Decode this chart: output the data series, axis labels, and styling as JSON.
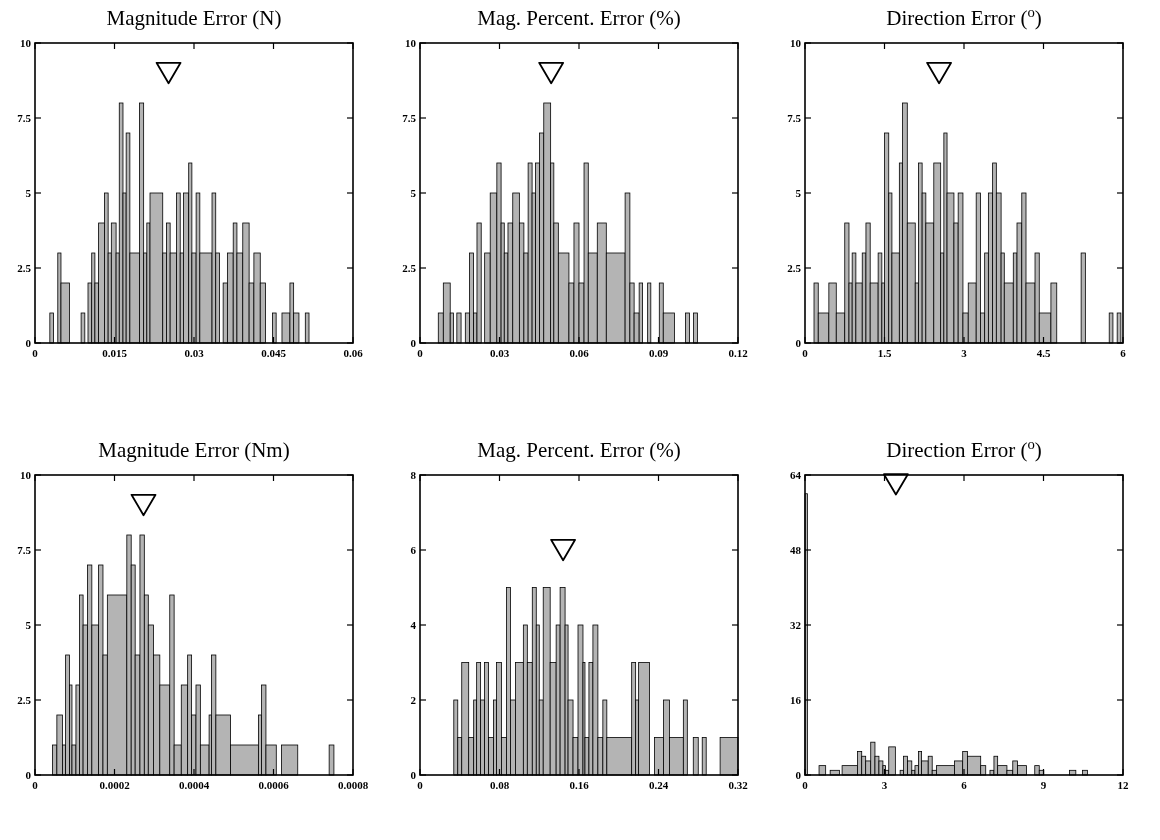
{
  "chart_data": [
    {
      "type": "histogram",
      "title": "Magnitude Error (N)",
      "color": "#b4b4b4",
      "xlim": [
        0,
        0.06
      ],
      "xticks": [
        0,
        0.015,
        0.03,
        0.045,
        0.06
      ],
      "ylim": [
        0,
        10
      ],
      "yticks": [
        0,
        2.5,
        5,
        7.5,
        10
      ],
      "bins": [
        0.0028,
        0.0035,
        0.0043,
        0.0049,
        0.0065,
        0.0087,
        0.0094,
        0.01,
        0.0107,
        0.0113,
        0.012,
        0.0131,
        0.0138,
        0.0144,
        0.0153,
        0.0159,
        0.0166,
        0.0172,
        0.0179,
        0.0197,
        0.0205,
        0.0211,
        0.0217,
        0.0241,
        0.0248,
        0.0255,
        0.0267,
        0.0274,
        0.028,
        0.029,
        0.0296,
        0.0304,
        0.0311,
        0.0334,
        0.0341,
        0.0348,
        0.0355,
        0.0363,
        0.0374,
        0.0381,
        0.0392,
        0.0404,
        0.0413,
        0.0425,
        0.0435,
        0.0448,
        0.0455,
        0.0466,
        0.0481,
        0.0488,
        0.0498,
        0.051,
        0.0517
      ],
      "values": [
        1,
        0,
        3,
        2,
        0,
        1,
        0,
        2,
        3,
        2,
        4,
        5,
        3,
        4,
        3,
        8,
        5,
        7,
        3,
        8,
        3,
        4,
        5,
        3,
        4,
        3,
        5,
        3,
        5,
        6,
        3,
        5,
        3,
        5,
        3,
        0,
        2,
        3,
        4,
        3,
        4,
        2,
        3,
        2,
        0,
        1,
        0,
        1,
        2,
        1,
        0,
        1
      ],
      "series": [
        {
          "type": "scatter",
          "marker": "triangle",
          "color": "#000000",
          "x": [
            0.0252
          ],
          "values": [
            9
          ]
        }
      ]
    },
    {
      "type": "histogram",
      "title": "Mag. Percent. Error (%)",
      "color": "#b4b4b4",
      "xlim": [
        0,
        0.12
      ],
      "xticks": [
        0,
        0.03,
        0.06,
        0.09,
        0.12
      ],
      "ylim": [
        0,
        10
      ],
      "yticks": [
        0,
        2.5,
        5,
        7.5,
        10
      ],
      "bins": [
        0.0069,
        0.0088,
        0.0114,
        0.0126,
        0.0139,
        0.0155,
        0.0171,
        0.0187,
        0.0202,
        0.0215,
        0.0231,
        0.0244,
        0.0265,
        0.029,
        0.0306,
        0.0318,
        0.0332,
        0.035,
        0.0375,
        0.0392,
        0.0408,
        0.0423,
        0.0436,
        0.0451,
        0.0467,
        0.0493,
        0.0505,
        0.0522,
        0.0562,
        0.0581,
        0.06,
        0.0619,
        0.0635,
        0.0669,
        0.0703,
        0.0774,
        0.0792,
        0.0808,
        0.0827,
        0.084,
        0.0859,
        0.0871,
        0.0903,
        0.0918,
        0.096,
        0.1002,
        0.1017,
        0.1032,
        0.1047
      ],
      "values": [
        1,
        2,
        1,
        0,
        1,
        0,
        1,
        3,
        1,
        4,
        0,
        3,
        5,
        6,
        4,
        3,
        4,
        5,
        4,
        3,
        6,
        5,
        6,
        7,
        8,
        6,
        4,
        3,
        2,
        4,
        2,
        6,
        3,
        4,
        3,
        5,
        2,
        1,
        2,
        0,
        2,
        0,
        2,
        1,
        0,
        1,
        0,
        1
      ],
      "series": [
        {
          "type": "scatter",
          "marker": "triangle",
          "color": "#000000",
          "x": [
            0.0495
          ],
          "values": [
            9
          ]
        }
      ]
    },
    {
      "type": "histogram",
      "title": "Direction Error ($^{o}$)",
      "color": "#b4b4b4",
      "xlim": [
        0,
        6
      ],
      "xticks": [
        0,
        1.5,
        3,
        4.5,
        6
      ],
      "ylim": [
        0,
        10
      ],
      "yticks": [
        0,
        2.5,
        5,
        7.5,
        10
      ],
      "bins": [
        0.17,
        0.25,
        0.45,
        0.59,
        0.75,
        0.83,
        0.89,
        0.96,
        1.08,
        1.15,
        1.23,
        1.38,
        1.45,
        1.5,
        1.58,
        1.64,
        1.78,
        1.84,
        1.93,
        2.08,
        2.14,
        2.21,
        2.28,
        2.43,
        2.56,
        2.62,
        2.68,
        2.81,
        2.89,
        2.98,
        3.08,
        3.23,
        3.31,
        3.39,
        3.46,
        3.54,
        3.61,
        3.7,
        3.76,
        3.93,
        4,
        4.09,
        4.17,
        4.34,
        4.42,
        4.64,
        4.75,
        5.21,
        5.29,
        5.74,
        5.81,
        5.89,
        5.96
      ],
      "values": [
        2,
        1,
        2,
        1,
        4,
        2,
        3,
        2,
        3,
        4,
        2,
        3,
        2,
        7,
        5,
        3,
        6,
        8,
        4,
        2,
        6,
        5,
        4,
        6,
        3,
        7,
        5,
        4,
        5,
        1,
        2,
        5,
        1,
        3,
        5,
        6,
        5,
        3,
        2,
        3,
        4,
        5,
        2,
        3,
        1,
        2,
        0,
        3,
        0,
        1,
        0,
        1
      ],
      "series": [
        {
          "type": "scatter",
          "marker": "triangle",
          "color": "#000000",
          "x": [
            2.53
          ],
          "values": [
            9
          ]
        }
      ]
    },
    {
      "type": "histogram",
      "title": "Magnitude Error (Nm)",
      "color": "#b4b4b4",
      "xlim": [
        0,
        0.0008
      ],
      "xticks": [
        0,
        0.0002,
        0.0004,
        0.0006,
        0.0008
      ],
      "ylim": [
        0,
        10
      ],
      "yticks": [
        0,
        2.5,
        5,
        7.5,
        10
      ],
      "bins": [
        4.4e-05,
        5.5e-05,
        6.9e-05,
        7.7e-05,
        8.7e-05,
        9.3e-05,
        0.000103,
        0.000112,
        0.000121,
        0.000132,
        0.000143,
        0.00016,
        0.000171,
        0.000182,
        0.000231,
        0.000242,
        0.000252,
        0.000264,
        0.000275,
        0.000285,
        0.000298,
        0.000314,
        0.000339,
        0.00035,
        0.000368,
        0.000384,
        0.000394,
        0.000405,
        0.000416,
        0.000438,
        0.000444,
        0.000455,
        0.000492,
        0.000562,
        0.00057,
        0.000581,
        0.000607,
        0.00062,
        0.000661,
        0.00074,
        0.000752
      ],
      "values": [
        1,
        2,
        1,
        4,
        3,
        1,
        3,
        6,
        5,
        7,
        5,
        7,
        4,
        6,
        8,
        7,
        4,
        8,
        6,
        5,
        4,
        3,
        6,
        1,
        3,
        4,
        2,
        3,
        1,
        2,
        4,
        2,
        1,
        2,
        3,
        1,
        0,
        1,
        0,
        1
      ],
      "series": [
        {
          "type": "scatter",
          "marker": "triangle",
          "color": "#000000",
          "x": [
            0.000273
          ],
          "values": [
            9
          ]
        }
      ]
    },
    {
      "type": "histogram",
      "title": "Mag. Percent. Error (%)",
      "color": "#b4b4b4",
      "xlim": [
        0,
        0.32
      ],
      "xticks": [
        0,
        0.08,
        0.16,
        0.24,
        0.32
      ],
      "ylim": [
        0,
        8
      ],
      "yticks": [
        0,
        2,
        4,
        6,
        8
      ],
      "bins": [
        0.034,
        0.038,
        0.042,
        0.049,
        0.054,
        0.057,
        0.061,
        0.065,
        0.069,
        0.074,
        0.077,
        0.082,
        0.087,
        0.091,
        0.096,
        0.104,
        0.108,
        0.113,
        0.117,
        0.12,
        0.124,
        0.131,
        0.137,
        0.141,
        0.146,
        0.149,
        0.154,
        0.159,
        0.164,
        0.166,
        0.17,
        0.174,
        0.179,
        0.184,
        0.188,
        0.213,
        0.217,
        0.22,
        0.231,
        0.236,
        0.245,
        0.251,
        0.265,
        0.269,
        0.275,
        0.28,
        0.284,
        0.288,
        0.302,
        0.32
      ],
      "values": [
        2,
        1,
        3,
        1,
        2,
        3,
        2,
        3,
        1,
        2,
        3,
        1,
        5,
        2,
        3,
        4,
        3,
        5,
        4,
        2,
        5,
        3,
        4,
        5,
        4,
        2,
        1,
        4,
        3,
        1,
        3,
        4,
        1,
        2,
        1,
        3,
        2,
        3,
        0,
        1,
        2,
        1,
        2,
        0,
        1,
        0,
        1,
        0,
        1
      ],
      "series": [
        {
          "type": "scatter",
          "marker": "triangle",
          "color": "#000000",
          "x": [
            0.144
          ],
          "values": [
            6
          ]
        }
      ]
    },
    {
      "type": "histogram",
      "title": "Direction Error ($^{o}$)",
      "color": "#b4b4b4",
      "xlim": [
        0,
        12
      ],
      "xticks": [
        0,
        3,
        6,
        9,
        12
      ],
      "ylim": [
        0,
        64
      ],
      "yticks": [
        0,
        16,
        32,
        48,
        64
      ],
      "bins": [
        0,
        0.09,
        0.53,
        0.78,
        0.95,
        1.3,
        1.4,
        1.98,
        2.14,
        2.29,
        2.48,
        2.64,
        2.79,
        2.94,
        3.04,
        3.16,
        3.41,
        3.59,
        3.72,
        3.87,
        4.03,
        4.15,
        4.28,
        4.4,
        4.65,
        4.8,
        4.96,
        5.64,
        5.95,
        6.13,
        6.63,
        6.82,
        6.98,
        7.13,
        7.27,
        7.62,
        7.84,
        8.02,
        8.36,
        8.67,
        8.84,
        9.01,
        9.98,
        10.22,
        10.47,
        10.66
      ],
      "values": [
        60,
        0,
        2,
        0,
        1,
        0,
        2,
        5,
        4,
        3,
        7,
        4,
        3,
        2,
        1,
        6,
        0,
        1,
        4,
        3,
        1,
        2,
        5,
        3,
        4,
        1,
        2,
        3,
        5,
        4,
        2,
        0,
        1,
        4,
        2,
        1,
        3,
        2,
        0,
        2,
        1,
        0,
        1,
        0,
        1
      ],
      "series": [
        {
          "type": "scatter",
          "marker": "triangle",
          "color": "#000000",
          "x": [
            3.43
          ],
          "values": [
            62
          ]
        }
      ]
    }
  ]
}
